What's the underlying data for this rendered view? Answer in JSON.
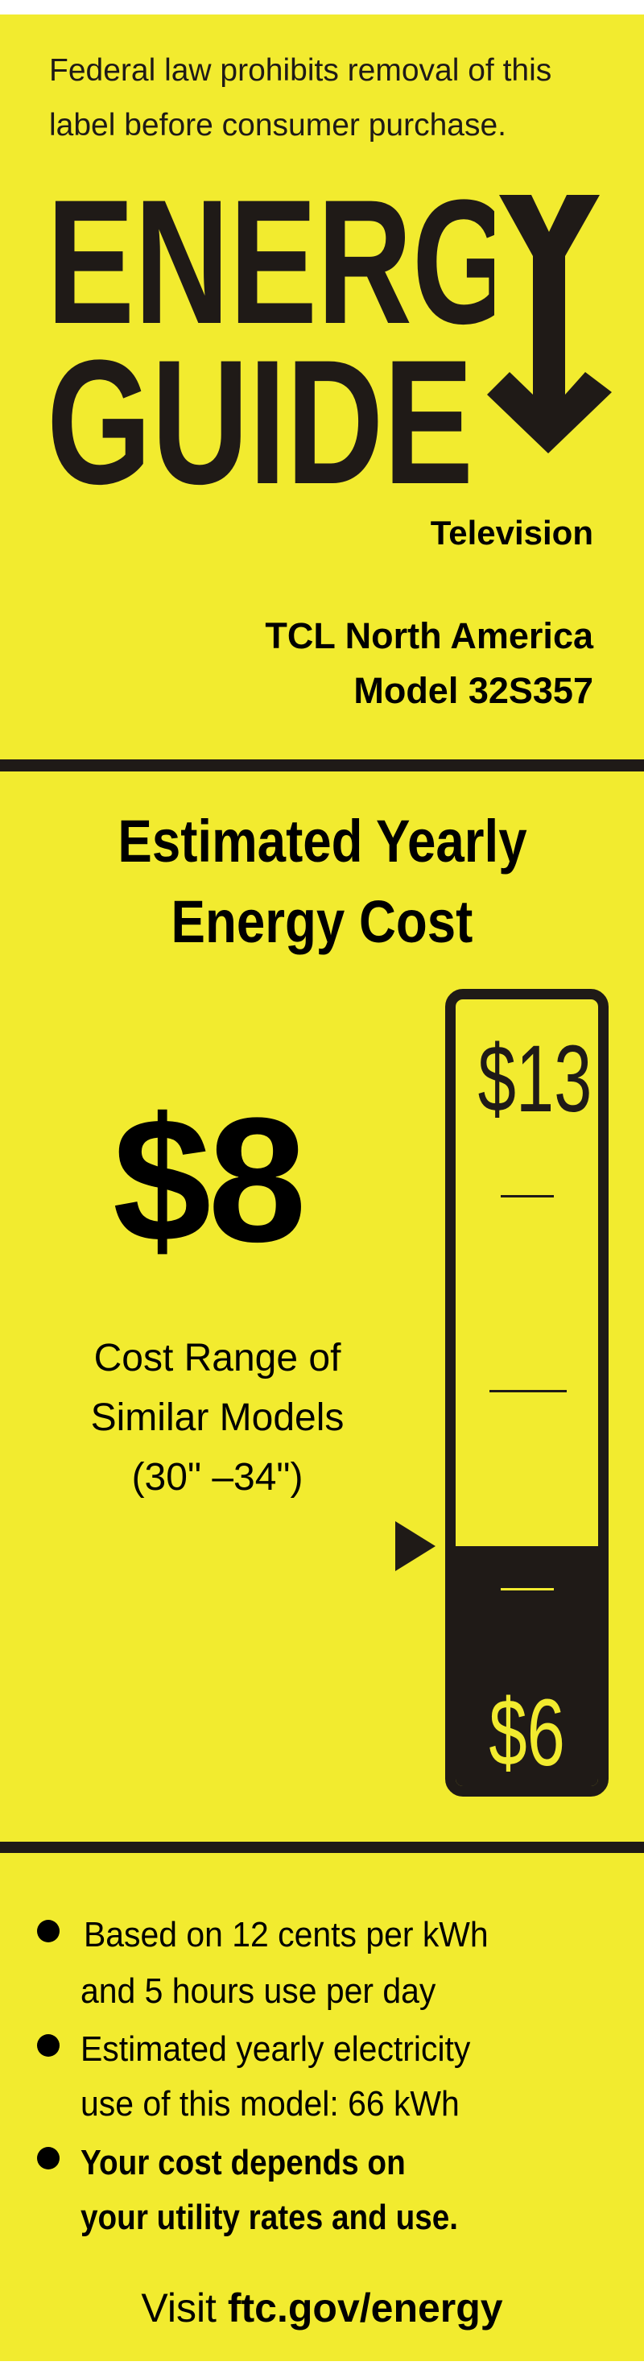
{
  "notice": {
    "line1": "Federal law prohibits removal of this",
    "line2": "label before consumer purchase."
  },
  "logo": {
    "line1": "ENERGY",
    "line2": "GUIDE",
    "icon": "down-arrow-icon"
  },
  "product": {
    "category": "Television",
    "manufacturer": "TCL North America",
    "model": "Model 32S357"
  },
  "heading": {
    "line1": "Estimated Yearly",
    "line2": "Energy Cost"
  },
  "cost": {
    "value": "$8",
    "amount": 8
  },
  "range": {
    "line1": "Cost Range of",
    "line2": "Similar Models",
    "line3": "(30\" –34\")",
    "max_label": "$13",
    "min_label": "$6",
    "max": 13,
    "min": 6
  },
  "bullets": [
    {
      "lines": [
        "Based on 12 cents per kWh",
        "and 5 hours use per day"
      ],
      "bold": false
    },
    {
      "lines": [
        "Estimated yearly electricity",
        "use of this model: 66 kWh"
      ],
      "bold": false
    },
    {
      "lines": [
        "Your cost depends on",
        "your utility rates and use."
      ],
      "bold": true
    }
  ],
  "footer": {
    "prefix": "Visit",
    "link": "ftc.gov/energy"
  },
  "colors": {
    "label_background": "#f2eb2f",
    "ink": "#1f1a17"
  }
}
